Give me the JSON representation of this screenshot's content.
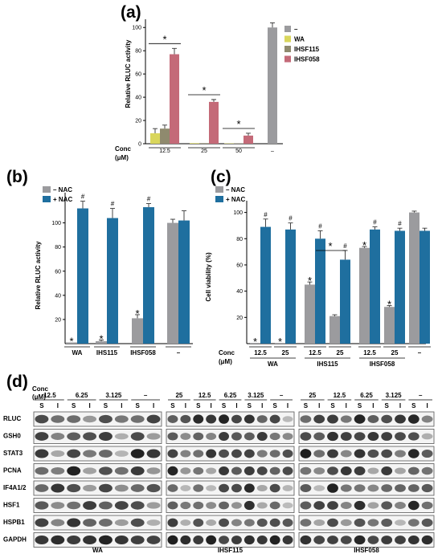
{
  "panels": {
    "a": "(a)",
    "b": "(b)",
    "c": "(c)",
    "d": "(d)"
  },
  "colors": {
    "none": "#9b9b9e",
    "WA": "#d9d65c",
    "IHSF115": "#8f8a6e",
    "IHSF058": "#c46a78",
    "nac_minus": "#9b9b9e",
    "nac_plus": "#1f6f9f"
  },
  "marks": {
    "star": "*",
    "hash": "#"
  },
  "conc_label": "Conc",
  "unit_label": "(μM)",
  "chart_data": [
    {
      "type": "bar",
      "ylabel": "Relative  RLUC activity",
      "ylim": [
        0,
        105
      ],
      "yticks": [
        0,
        20,
        40,
        60,
        80,
        100
      ],
      "legend": [
        "–",
        "WA",
        "IHSF115",
        "IHSF058"
      ],
      "legend_position": "right",
      "groups": [
        {
          "label": "12.5",
          "bars": [
            {
              "series": "WA",
              "value": 9,
              "err": 4
            },
            {
              "series": "IHSF115",
              "value": 13,
              "err": 3
            },
            {
              "series": "IHSF058",
              "value": 77,
              "err": 5
            }
          ],
          "sig": "*"
        },
        {
          "label": "25",
          "bars": [
            {
              "series": "WA",
              "value": 0.5,
              "err": 0
            },
            {
              "series": "IHSF115",
              "value": 0.5,
              "err": 0
            },
            {
              "series": "IHSF058",
              "value": 36,
              "err": 2
            }
          ],
          "sig": "*"
        },
        {
          "label": "50",
          "bars": [
            {
              "series": "WA",
              "value": 0.3,
              "err": 0
            },
            {
              "series": "IHSF115",
              "value": 0.3,
              "err": 0
            },
            {
              "series": "IHSF058",
              "value": 7,
              "err": 2
            }
          ],
          "sig": "*"
        },
        {
          "label": "–",
          "bars": [
            {
              "series": "–",
              "value": 100,
              "err": 4
            }
          ]
        }
      ]
    },
    {
      "type": "bar",
      "ylabel": "Relative  RLUC activity",
      "ylim": [
        0,
        125
      ],
      "yticks": [
        20,
        40,
        60,
        80,
        100
      ],
      "legend": [
        "– NAC",
        "+ NAC"
      ],
      "legend_position": "top-left",
      "groups": [
        {
          "label": "WA",
          "minus": 1,
          "minus_err": 0,
          "plus": 112,
          "plus_err": 6,
          "minus_mark": "*",
          "plus_mark": "#"
        },
        {
          "label": "IHS115",
          "minus": 2,
          "minus_err": 1,
          "plus": 104,
          "plus_err": 8,
          "minus_mark": "*",
          "plus_mark": "#"
        },
        {
          "label": "IHSF058",
          "minus": 21,
          "minus_err": 3,
          "plus": 113,
          "plus_err": 3,
          "minus_mark": "*",
          "plus_mark": "#"
        },
        {
          "label": "–",
          "minus": 100,
          "minus_err": 3,
          "plus": 102,
          "plus_err": 8
        }
      ]
    },
    {
      "type": "bar",
      "ylabel": "Cell viability (%)",
      "ylim": [
        0,
        112
      ],
      "yticks": [
        20,
        40,
        60,
        80,
        100
      ],
      "legend": [
        "– NAC",
        "+ NAC"
      ],
      "legend_position": "top-left",
      "groups": [
        {
          "label": "12.5",
          "drug": "WA",
          "minus": 0.5,
          "minus_err": 0,
          "plus": 89,
          "plus_err": 6,
          "minus_mark": "*",
          "plus_mark": "#"
        },
        {
          "label": "25",
          "drug": "WA",
          "minus": 0.5,
          "minus_err": 0,
          "plus": 87,
          "plus_err": 5,
          "minus_mark": "*",
          "plus_mark": "#"
        },
        {
          "label": "12.5",
          "drug": "IHS115",
          "minus": 45,
          "minus_err": 2,
          "plus": 80,
          "plus_err": 6,
          "minus_mark": "*",
          "plus_mark": "#"
        },
        {
          "label": "25",
          "drug": "IHS115",
          "minus": 21,
          "minus_err": 1,
          "plus": 64,
          "plus_err": 7,
          "plus_mark": "#"
        },
        {
          "label": "12.5",
          "drug": "IHSF058",
          "minus": 73,
          "minus_err": 1,
          "plus": 87,
          "plus_err": 2,
          "minus_mark": "*",
          "plus_mark": "#"
        },
        {
          "label": "25",
          "drug": "IHSF058",
          "minus": 28,
          "minus_err": 1,
          "plus": 86,
          "plus_err": 2,
          "minus_mark": "*",
          "plus_mark": "#"
        },
        {
          "label": "–",
          "minus": 100,
          "minus_err": 1,
          "plus": 86,
          "plus_err": 2
        }
      ],
      "drug_labels": [
        "WA",
        "IHS115",
        "IHSF058"
      ]
    }
  ],
  "western": {
    "rows": [
      "RLUC",
      "GSH0",
      "STAT3",
      "PCNA",
      "IF4A1/2",
      "HSF1",
      "HSPB1",
      "GAPDH"
    ],
    "fraction_labels": [
      "S",
      "I"
    ],
    "blocks": [
      {
        "drug": "WA",
        "concs": [
          "12.5",
          "6.25",
          "3.125",
          "–"
        ]
      },
      {
        "drug": "IHSF115",
        "concs": [
          "25",
          "12.5",
          "6.25",
          "3.125",
          "–"
        ]
      },
      {
        "drug": "IHSF058",
        "concs": [
          "25",
          "12.5",
          "6.25",
          "3.125",
          "–"
        ]
      }
    ]
  }
}
